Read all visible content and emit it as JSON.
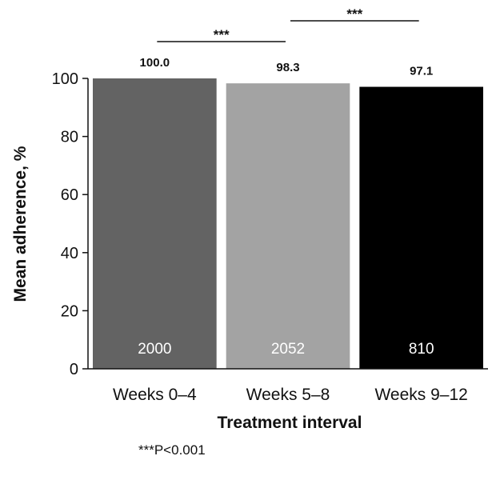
{
  "chart_data": {
    "type": "bar",
    "categories": [
      "Weeks 0–4",
      "Weeks 5–8",
      "Weeks 9–12"
    ],
    "values": [
      100.0,
      98.3,
      97.1
    ],
    "value_labels": [
      "100.0",
      "98.3",
      "97.1"
    ],
    "n_labels": [
      "2000",
      "2052",
      "810"
    ],
    "colors": [
      "#636363",
      "#a3a3a3",
      "#000000"
    ],
    "title": "",
    "xlabel": "Treatment interval",
    "ylabel": "Mean adherence, %",
    "ylim": [
      0,
      100
    ],
    "yticks": [
      0,
      20,
      40,
      60,
      80,
      100
    ],
    "grid": false,
    "significance": [
      {
        "from": 0,
        "to": 1,
        "label": "***"
      },
      {
        "from": 1,
        "to": 2,
        "label": "***"
      }
    ]
  },
  "footnote": "***P<0.001"
}
